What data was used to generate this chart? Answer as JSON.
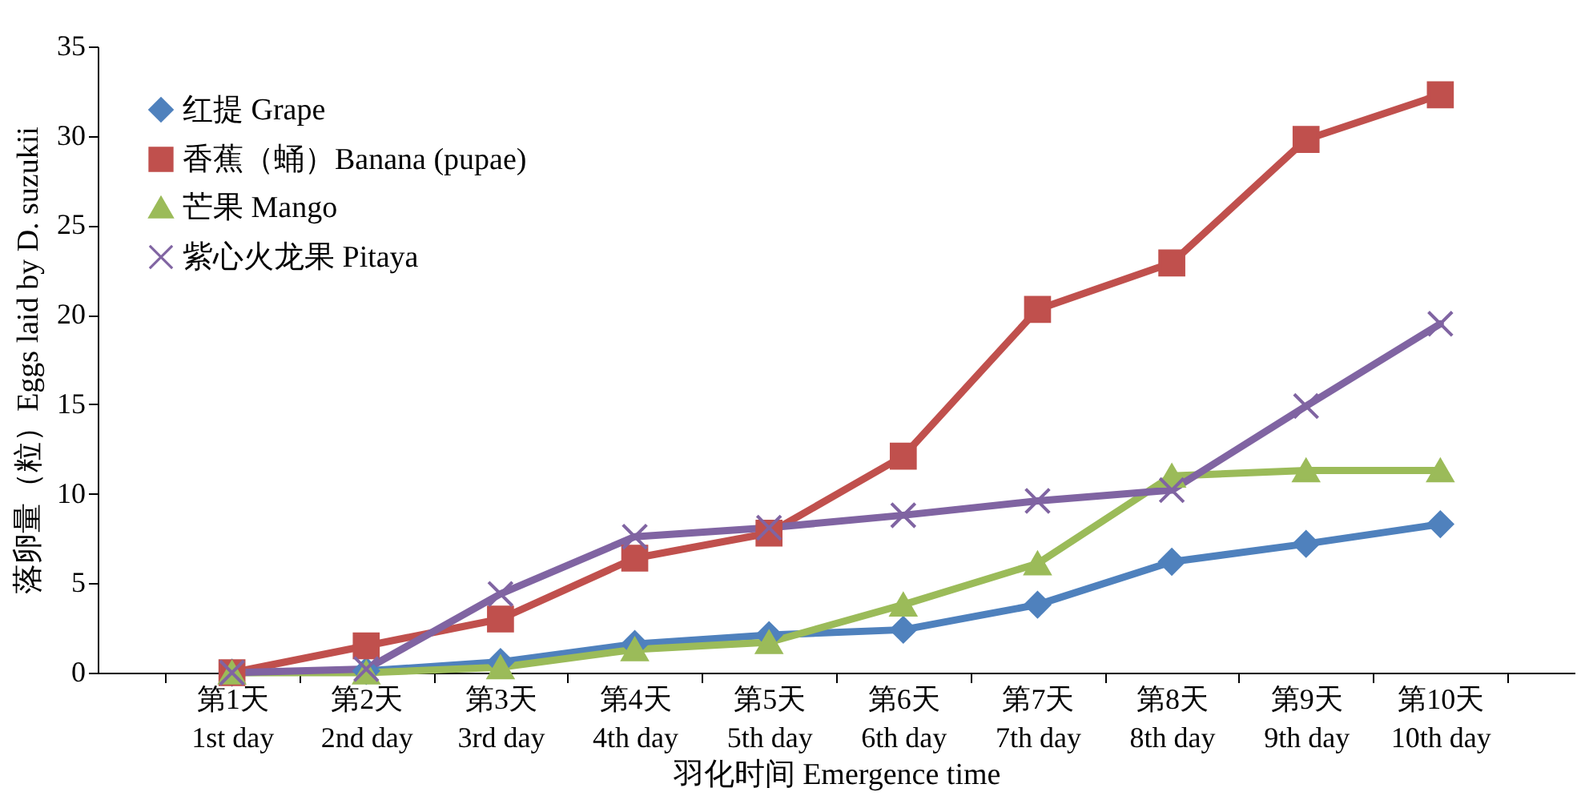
{
  "chart_data": {
    "type": "line",
    "xlabel": "羽化时间 Emergence time",
    "ylabel": "落卵量（粒）Eggs laid by D. suzukii",
    "categories": [
      "第1天\n1st day",
      "第2天\n2nd day",
      "第3天\n3rd day",
      "第4天\n4th day",
      "第5天\n5th day",
      "第6天\n6th day",
      "第7天\n7th day",
      "第8天\n8th day",
      "第9天\n9th day",
      "第10天\n10th day"
    ],
    "series": [
      {
        "name": "红提 Grape",
        "color": "#4f81bd",
        "marker": "diamond",
        "values": [
          0,
          0.1,
          0.6,
          1.6,
          2.1,
          2.4,
          3.8,
          6.2,
          7.2,
          8.3
        ]
      },
      {
        "name": "香蕉（蛹）Banana (pupae)",
        "color": "#c0504d",
        "marker": "square",
        "values": [
          0,
          1.5,
          3.0,
          6.4,
          7.8,
          12.1,
          20.3,
          22.9,
          29.8,
          32.3
        ]
      },
      {
        "name": "芒果 Mango",
        "color": "#9bbb59",
        "marker": "triangle",
        "values": [
          0,
          0,
          0.3,
          1.3,
          1.7,
          3.8,
          6.1,
          11.0,
          11.3,
          11.3
        ]
      },
      {
        "name": "紫心火龙果 Pitaya",
        "color": "#8064a2",
        "marker": "cross",
        "values": [
          0,
          0.2,
          4.4,
          7.6,
          8.1,
          8.8,
          9.6,
          10.2,
          14.9,
          19.5
        ]
      }
    ],
    "ylim": [
      0,
      35
    ],
    "yticks": [
      0,
      5,
      10,
      15,
      20,
      25,
      30,
      35
    ],
    "grid": false,
    "legend": "top left",
    "line_style": "solid"
  }
}
